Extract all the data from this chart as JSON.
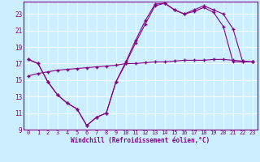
{
  "background_color": "#cceeff",
  "grid_color": "#ffffff",
  "line_color": "#880088",
  "xlabel": "Windchill (Refroidissement éolien,°C)",
  "xlim": [
    -0.5,
    23.5
  ],
  "ylim": [
    9,
    24.5
  ],
  "yticks": [
    9,
    11,
    13,
    15,
    17,
    19,
    21,
    23
  ],
  "xticks": [
    0,
    1,
    2,
    3,
    4,
    5,
    6,
    7,
    8,
    9,
    10,
    11,
    12,
    13,
    14,
    15,
    16,
    17,
    18,
    19,
    20,
    21,
    22,
    23
  ],
  "line1_x": [
    0,
    1,
    2,
    3,
    4,
    5,
    6,
    7,
    8,
    9,
    10,
    11,
    12,
    13,
    14,
    15,
    16,
    17,
    18,
    19,
    20,
    21,
    22,
    23
  ],
  "line1_y": [
    17.5,
    17.0,
    14.8,
    13.2,
    12.2,
    11.5,
    9.5,
    10.5,
    11.0,
    14.8,
    17.2,
    19.8,
    22.2,
    24.2,
    24.3,
    23.5,
    23.0,
    23.3,
    23.8,
    23.2,
    21.5,
    17.2,
    17.2,
    17.2
  ],
  "line2_x": [
    0,
    1,
    2,
    3,
    4,
    5,
    6,
    7,
    8,
    9,
    10,
    11,
    12,
    13,
    14,
    15,
    16,
    17,
    18,
    19,
    20,
    21,
    22,
    23
  ],
  "line2_y": [
    17.5,
    17.0,
    14.8,
    13.2,
    12.2,
    11.5,
    9.5,
    10.5,
    11.0,
    14.8,
    17.0,
    19.5,
    21.8,
    24.0,
    24.3,
    23.5,
    23.0,
    23.5,
    24.0,
    23.5,
    23.0,
    21.2,
    17.2,
    17.2
  ],
  "line3_x": [
    0,
    1,
    2,
    3,
    4,
    5,
    6,
    7,
    8,
    9,
    10,
    11,
    12,
    13,
    14,
    15,
    16,
    17,
    18,
    19,
    20,
    21,
    22,
    23
  ],
  "line3_y": [
    15.5,
    15.8,
    16.0,
    16.2,
    16.3,
    16.4,
    16.5,
    16.6,
    16.7,
    16.8,
    17.0,
    17.0,
    17.1,
    17.2,
    17.2,
    17.3,
    17.4,
    17.4,
    17.4,
    17.5,
    17.5,
    17.4,
    17.3,
    17.2
  ]
}
